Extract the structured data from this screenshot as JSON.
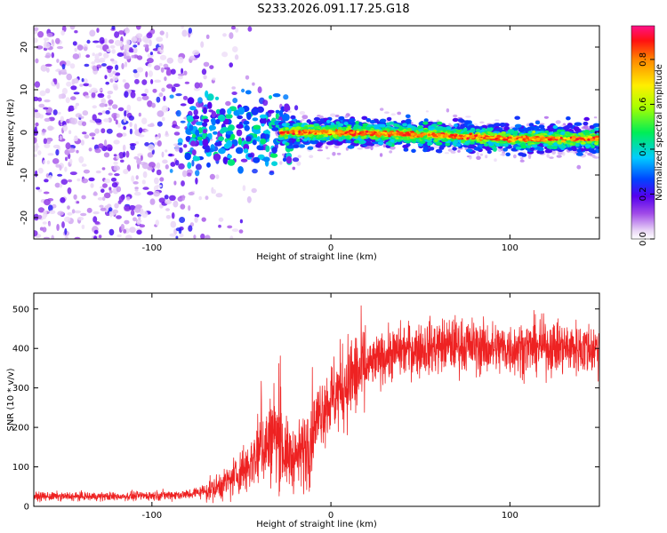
{
  "figure": {
    "title": "S233.2026.091.17.25.G18"
  },
  "chart_data": [
    {
      "type": "heatmap",
      "name": "spectrogram",
      "xlabel": "Height of straight line (km)",
      "ylabel": "Frequency (Hz)",
      "xlim": [
        -166,
        150
      ],
      "ylim": [
        -25,
        25
      ],
      "xticks": [
        -100,
        0,
        100
      ],
      "yticks": [
        -20,
        -10,
        0,
        10,
        20
      ],
      "colorbar": {
        "label": "Normalized spectral amplitude",
        "range": [
          0,
          0.95
        ],
        "ticks": [
          0.0,
          0.2,
          0.4,
          0.6,
          0.8
        ]
      },
      "ridge": {
        "description_points_x": [
          -30,
          0,
          50,
          100,
          150
        ],
        "description_points_y": [
          0,
          0,
          -0.5,
          -1.5,
          -1.5
        ]
      }
    },
    {
      "type": "line",
      "name": "snr",
      "xlabel": "Height of straight line (km)",
      "ylabel": "SNR (10 * v/v)",
      "xlim": [
        -166,
        150
      ],
      "ylim": [
        0,
        540
      ],
      "xticks": [
        -100,
        0,
        100
      ],
      "yticks": [
        0,
        100,
        200,
        300,
        400,
        500
      ],
      "color": "#ee2222",
      "series": [
        {
          "name": "SNR",
          "x": [
            -166,
            -120,
            -80,
            -65,
            -55,
            -45,
            -40,
            -35,
            -30,
            -25,
            -20,
            -15,
            -10,
            -5,
            0,
            10,
            20,
            30,
            40,
            50,
            60,
            70,
            80,
            90,
            100,
            120,
            140,
            150
          ],
          "values": [
            25,
            25,
            30,
            45,
            70,
            110,
            150,
            160,
            180,
            130,
            120,
            140,
            200,
            250,
            270,
            320,
            350,
            380,
            395,
            400,
            405,
            410,
            405,
            400,
            400,
            405,
            400,
            400
          ]
        }
      ]
    }
  ]
}
